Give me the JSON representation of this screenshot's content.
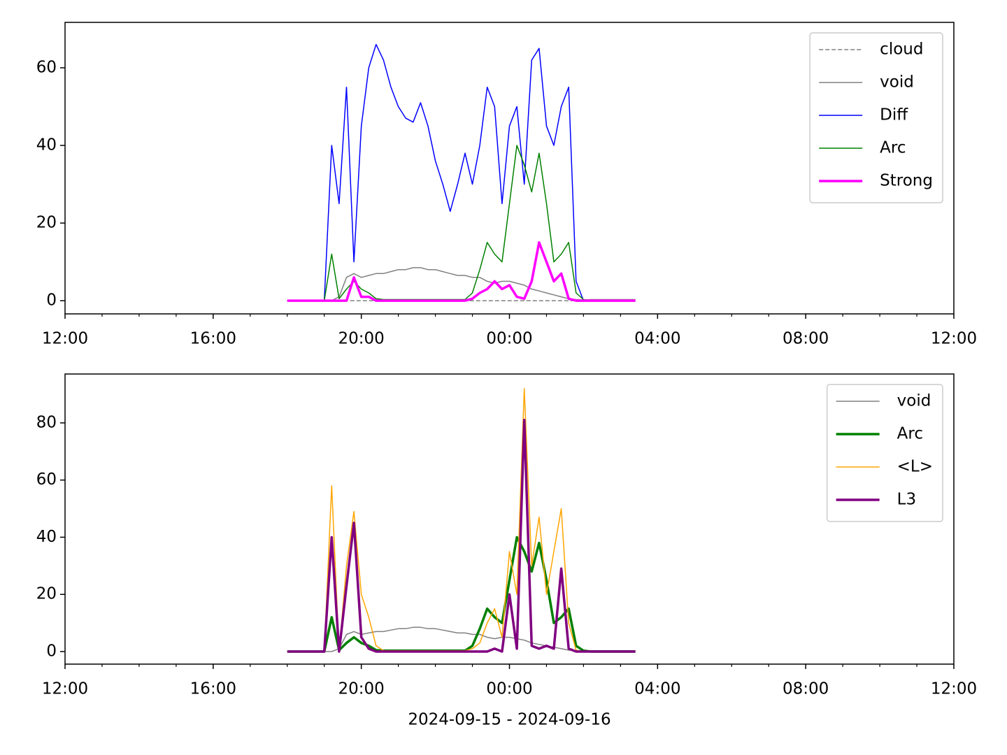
{
  "chart_data": [
    {
      "type": "line",
      "x": [
        18,
        18.2,
        18.4,
        18.6,
        18.8,
        19,
        19.2,
        19.4,
        19.6,
        19.8,
        20,
        20.2,
        20.4,
        20.6,
        20.8,
        21,
        21.2,
        21.4,
        21.6,
        21.8,
        22,
        22.2,
        22.4,
        22.6,
        22.8,
        23,
        23.2,
        23.4,
        23.6,
        23.8,
        24,
        24.2,
        24.4,
        24.6,
        24.8,
        25,
        25.2,
        25.4,
        25.6,
        25.8,
        26,
        26.2,
        26.4,
        26.6,
        26.8,
        27,
        27.2,
        27.4
      ],
      "xlim": [
        12,
        36
      ],
      "xticks": [
        {
          "value": 12,
          "label": "12:00"
        },
        {
          "value": 16,
          "label": "16:00"
        },
        {
          "value": 20,
          "label": "20:00"
        },
        {
          "value": 24,
          "label": "00:00"
        },
        {
          "value": 28,
          "label": "04:00"
        },
        {
          "value": 32,
          "label": "08:00"
        },
        {
          "value": 36,
          "label": "12:00"
        }
      ],
      "xminorticks": [
        13,
        14,
        15,
        17,
        18,
        19,
        21,
        22,
        23,
        25,
        26,
        27,
        29,
        30,
        31,
        33,
        34,
        35
      ],
      "ylim": [
        -3.4,
        71.7
      ],
      "yticks": [
        0,
        20,
        40,
        60
      ],
      "legend": "upper right",
      "series": [
        {
          "name": "cloud",
          "color": "#808080",
          "linestyle": "dashed",
          "linewidth": 1.5,
          "values": [
            0,
            0,
            0,
            0,
            0,
            0,
            0,
            0,
            0,
            0,
            0,
            0,
            0,
            0,
            0,
            0,
            0,
            0,
            0,
            0,
            0,
            0,
            0,
            0,
            0,
            0,
            0,
            0,
            0,
            0,
            0,
            0,
            0,
            0,
            0,
            0,
            0,
            0,
            0,
            0,
            0,
            0,
            0,
            0,
            0,
            0,
            0,
            0
          ]
        },
        {
          "name": "void",
          "color": "#808080",
          "linestyle": "solid",
          "linewidth": 1.5,
          "values": [
            0,
            0,
            0,
            0,
            0,
            0,
            0,
            1,
            6,
            7,
            6,
            6.5,
            7,
            7,
            7.5,
            8,
            8,
            8.5,
            8.5,
            8,
            8,
            7.5,
            7,
            6.5,
            6.5,
            6,
            6,
            5,
            4.5,
            5,
            5,
            4.5,
            4,
            3,
            2.5,
            2,
            1.5,
            1,
            0.5,
            0.3,
            0.2,
            0.3,
            0.3,
            0.3,
            0.3,
            0.3,
            0.3,
            0.3
          ]
        },
        {
          "name": "Diff",
          "color": "#0000ff",
          "linestyle": "solid",
          "linewidth": 1.5,
          "values": [
            0,
            0,
            0,
            0,
            0,
            0,
            40,
            25,
            55,
            10,
            45,
            60,
            66,
            62,
            55,
            50,
            47,
            46,
            51,
            45,
            36,
            30,
            23,
            30,
            38,
            30,
            40,
            55,
            50,
            25,
            45,
            50,
            30,
            62,
            65,
            45,
            40,
            50,
            55,
            5,
            0,
            0,
            0,
            0,
            0,
            0,
            0,
            0
          ]
        },
        {
          "name": "Arc",
          "color": "#008000",
          "linestyle": "solid",
          "linewidth": 1.5,
          "values": [
            0,
            0,
            0,
            0,
            0,
            0,
            12,
            0.5,
            3,
            5,
            3,
            2,
            0.5,
            0.3,
            0.3,
            0.3,
            0.3,
            0.3,
            0.3,
            0.3,
            0.3,
            0.3,
            0.3,
            0.3,
            0.3,
            2,
            8,
            15,
            12,
            10,
            25,
            40,
            35,
            28,
            38,
            25,
            10,
            12,
            15,
            2,
            0.3,
            0,
            0,
            0,
            0,
            0,
            0,
            0
          ]
        },
        {
          "name": "Strong",
          "color": "#ff00ff",
          "linestyle": "solid",
          "linewidth": 3.5,
          "values": [
            0,
            0,
            0,
            0,
            0,
            0,
            0,
            0,
            0,
            6,
            1,
            1,
            0,
            0,
            0,
            0,
            0,
            0,
            0,
            0,
            0,
            0,
            0,
            0,
            0,
            0.5,
            2,
            3,
            5,
            3,
            4,
            1,
            0.5,
            5,
            15,
            10,
            5,
            7,
            0.5,
            0,
            0,
            0,
            0,
            0,
            0,
            0,
            0,
            0
          ]
        }
      ]
    },
    {
      "type": "line",
      "x": [
        18,
        18.2,
        18.4,
        18.6,
        18.8,
        19,
        19.2,
        19.4,
        19.6,
        19.8,
        20,
        20.2,
        20.4,
        20.6,
        20.8,
        21,
        21.2,
        21.4,
        21.6,
        21.8,
        22,
        22.2,
        22.4,
        22.6,
        22.8,
        23,
        23.2,
        23.4,
        23.6,
        23.8,
        24,
        24.2,
        24.4,
        24.6,
        24.8,
        25,
        25.2,
        25.4,
        25.6,
        25.8,
        26,
        26.2,
        26.4,
        26.6,
        26.8,
        27,
        27.2,
        27.4
      ],
      "xlim": [
        12,
        36
      ],
      "xticks": [
        {
          "value": 12,
          "label": "12:00"
        },
        {
          "value": 16,
          "label": "16:00"
        },
        {
          "value": 20,
          "label": "20:00"
        },
        {
          "value": 24,
          "label": "00:00"
        },
        {
          "value": 28,
          "label": "04:00"
        },
        {
          "value": 32,
          "label": "08:00"
        },
        {
          "value": 36,
          "label": "12:00"
        }
      ],
      "xminorticks": [
        13,
        14,
        15,
        17,
        18,
        19,
        21,
        22,
        23,
        25,
        26,
        27,
        29,
        30,
        31,
        33,
        34,
        35
      ],
      "xlabel": "2024-09-15 - 2024-09-16",
      "ylim": [
        -4.4,
        97.1
      ],
      "yticks": [
        0,
        20,
        40,
        60,
        80
      ],
      "legend": "upper right",
      "series": [
        {
          "name": "void",
          "color": "#808080",
          "linestyle": "solid",
          "linewidth": 1.5,
          "values": [
            0,
            0,
            0,
            0,
            0,
            0,
            0,
            1,
            6,
            7,
            6,
            6.5,
            7,
            7,
            7.5,
            8,
            8,
            8.5,
            8.5,
            8,
            8,
            7.5,
            7,
            6.5,
            6.5,
            6,
            6,
            5,
            4.5,
            5,
            5,
            4.5,
            4,
            3,
            2.5,
            2,
            1.5,
            1,
            0.5,
            0.3,
            0.2,
            0.3,
            0.3,
            0.3,
            0.3,
            0.3,
            0.3,
            0.3
          ]
        },
        {
          "name": "Arc",
          "color": "#008000",
          "linestyle": "solid",
          "linewidth": 3.5,
          "values": [
            0,
            0,
            0,
            0,
            0,
            0,
            12,
            0.5,
            3,
            5,
            3,
            2,
            0.5,
            0.3,
            0.3,
            0.3,
            0.3,
            0.3,
            0.3,
            0.3,
            0.3,
            0.3,
            0.3,
            0.3,
            0.3,
            2,
            8,
            15,
            12,
            10,
            25,
            40,
            35,
            28,
            38,
            25,
            10,
            12,
            15,
            2,
            0.3,
            0,
            0,
            0,
            0,
            0,
            0,
            0
          ]
        },
        {
          "name": "<L>",
          "color": "#ffa500",
          "linestyle": "solid",
          "linewidth": 1.5,
          "values": [
            0,
            0,
            0,
            0,
            0,
            0,
            58,
            0,
            30,
            49,
            20,
            12,
            2,
            0.3,
            0.3,
            0.3,
            0.3,
            0.3,
            0.3,
            0.3,
            0.3,
            0.3,
            0.3,
            0.3,
            0.3,
            1,
            3,
            10,
            15,
            5,
            35,
            20,
            92,
            30,
            47,
            20,
            35,
            50,
            10,
            0.5,
            0,
            0,
            0,
            0,
            0,
            0,
            0,
            0
          ]
        },
        {
          "name": "L3",
          "color": "#800080",
          "linestyle": "solid",
          "linewidth": 3.5,
          "values": [
            0,
            0,
            0,
            0,
            0,
            0,
            40,
            0,
            23,
            45,
            5,
            1,
            0,
            0,
            0,
            0,
            0,
            0,
            0,
            0,
            0,
            0,
            0,
            0,
            0,
            0,
            0,
            0,
            1,
            0,
            20,
            1,
            81,
            2,
            1,
            2,
            1,
            29,
            1,
            0,
            0,
            0,
            0,
            0,
            0,
            0,
            0,
            0
          ]
        }
      ]
    }
  ]
}
